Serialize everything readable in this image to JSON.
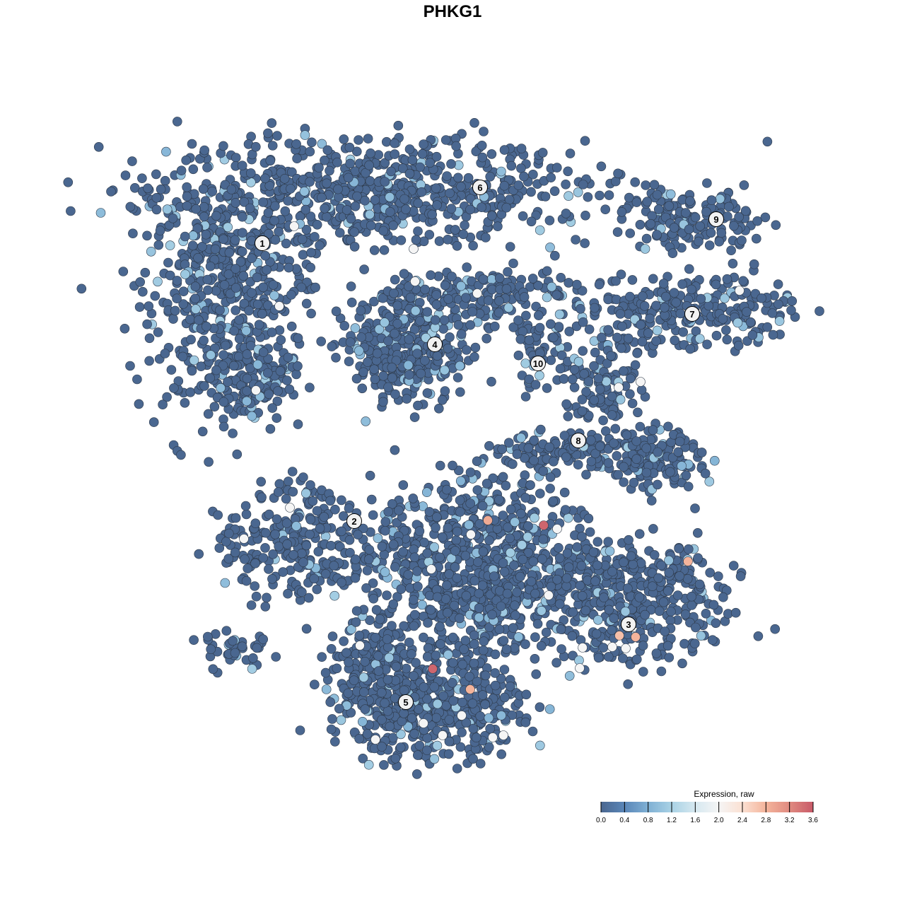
{
  "chart_data": {
    "type": "scatter",
    "title": "PHKG1",
    "xlabel": "",
    "ylabel": "",
    "axes_visible": false,
    "grid": false,
    "xlim": [
      0,
      93
    ],
    "ylim": [
      0,
      90
    ],
    "legend": {
      "title": "Expression, raw",
      "placement": "bottom-right",
      "range": [
        0.0,
        3.6
      ],
      "ticks": [
        "0.0",
        "0.4",
        "0.8",
        "1.2",
        "1.6",
        "2.0",
        "2.4",
        "2.8",
        "3.2",
        "3.6"
      ],
      "colors": [
        "#4a6790",
        "#5a86b8",
        "#7fb0d4",
        "#a9d2e5",
        "#d6e8f0",
        "#f5f5f5",
        "#fbe0d2",
        "#f4b49b",
        "#e08a80",
        "#c85a68"
      ]
    },
    "point_style": {
      "background_value": 0.0,
      "highlight_fraction": 0.08,
      "highlight_value": 1.0
    },
    "cell_groups": [
      {
        "cx": 32,
        "cy": 82,
        "rx": 30,
        "ry": 7,
        "n": 700
      },
      {
        "cx": 12,
        "cy": 67,
        "rx": 11,
        "ry": 15,
        "n": 500
      },
      {
        "cx": 16,
        "cy": 55,
        "rx": 6,
        "ry": 4,
        "n": 120
      },
      {
        "cx": 38,
        "cy": 60,
        "rx": 8,
        "ry": 8,
        "n": 350
      },
      {
        "cx": 50,
        "cy": 67,
        "rx": 12,
        "ry": 4,
        "n": 150
      },
      {
        "cx": 56.5,
        "cy": 59,
        "rx": 3.5,
        "ry": 5,
        "n": 60
      },
      {
        "cx": 78,
        "cy": 78,
        "rx": 10,
        "ry": 4,
        "n": 150
      },
      {
        "cx": 78,
        "cy": 65,
        "rx": 14,
        "ry": 5,
        "n": 250
      },
      {
        "cx": 66,
        "cy": 55,
        "rx": 5,
        "ry": 7,
        "n": 120
      },
      {
        "cx": 72,
        "cy": 44,
        "rx": 6.5,
        "ry": 4,
        "n": 150
      },
      {
        "cx": 59,
        "cy": 45,
        "rx": 8,
        "ry": 2.5,
        "n": 100
      },
      {
        "cx": 22,
        "cy": 32,
        "rx": 10,
        "ry": 7,
        "n": 250
      },
      {
        "cx": 48,
        "cy": 29,
        "rx": 15,
        "ry": 12,
        "n": 800
      },
      {
        "cx": 70,
        "cy": 24,
        "rx": 12,
        "ry": 8,
        "n": 400
      },
      {
        "cx": 41,
        "cy": 9,
        "rx": 12,
        "ry": 7,
        "n": 500
      },
      {
        "cx": 33,
        "cy": 15,
        "rx": 5,
        "ry": 6,
        "n": 150
      },
      {
        "cx": 13,
        "cy": 17,
        "rx": 5,
        "ry": 2.5,
        "n": 40
      }
    ],
    "expressing_cells": [
      {
        "x": 49.0,
        "y": 35.4,
        "value": 2.9
      },
      {
        "x": 56.9,
        "y": 34.7,
        "value": 3.5
      },
      {
        "x": 41.2,
        "y": 14.4,
        "value": 3.5
      },
      {
        "x": 46.5,
        "y": 11.5,
        "value": 2.8
      },
      {
        "x": 77.3,
        "y": 29.6,
        "value": 2.8
      },
      {
        "x": 67.6,
        "y": 19.1,
        "value": 2.7
      },
      {
        "x": 69.9,
        "y": 18.9,
        "value": 2.8
      },
      {
        "x": 38.5,
        "y": 73.8,
        "value": 2.0
      },
      {
        "x": 38.7,
        "y": 69.2,
        "value": 2.0
      },
      {
        "x": 47.5,
        "y": 67.5,
        "value": 2.0
      },
      {
        "x": 21.0,
        "y": 37.2,
        "value": 2.0
      },
      {
        "x": 14.5,
        "y": 32.8,
        "value": 2.0
      },
      {
        "x": 46.6,
        "y": 33.4,
        "value": 2.0
      },
      {
        "x": 58.8,
        "y": 34.2,
        "value": 2.0
      },
      {
        "x": 57.6,
        "y": 24.8,
        "value": 2.0
      },
      {
        "x": 68.5,
        "y": 17.3,
        "value": 2.0
      },
      {
        "x": 66.6,
        "y": 17.5,
        "value": 2.0
      },
      {
        "x": 62.4,
        "y": 17.4,
        "value": 2.0
      },
      {
        "x": 62.0,
        "y": 14.5,
        "value": 2.0
      },
      {
        "x": 70.6,
        "y": 55.0,
        "value": 2.0
      },
      {
        "x": 67.5,
        "y": 54.2,
        "value": 2.0
      },
      {
        "x": 84.6,
        "y": 67.9,
        "value": 2.0
      },
      {
        "x": 30.9,
        "y": 17.7,
        "value": 2.0
      },
      {
        "x": 39.9,
        "y": 6.7,
        "value": 2.0
      },
      {
        "x": 42.6,
        "y": 5.0,
        "value": 2.0
      },
      {
        "x": 51.2,
        "y": 5.0,
        "value": 2.0
      },
      {
        "x": 49.7,
        "y": 4.7,
        "value": 2.0
      },
      {
        "x": 45.3,
        "y": 7.8,
        "value": 2.0
      },
      {
        "x": 41.0,
        "y": 28.5,
        "value": 2.0
      },
      {
        "x": 33.1,
        "y": 4.4,
        "value": 2.0
      },
      {
        "x": 16.2,
        "y": 53.8,
        "value": 2.0
      },
      {
        "x": 19.5,
        "y": 65.7,
        "value": 2.0
      },
      {
        "x": 21.6,
        "y": 77.0,
        "value": 2.0
      }
    ],
    "cluster_labels": [
      {
        "label": "1",
        "x": 17.1,
        "y": 74.6
      },
      {
        "label": "2",
        "x": 30.1,
        "y": 35.3
      },
      {
        "label": "3",
        "x": 68.9,
        "y": 20.7
      },
      {
        "label": "4",
        "x": 41.5,
        "y": 60.3
      },
      {
        "label": "5",
        "x": 37.4,
        "y": 9.7
      },
      {
        "label": "6",
        "x": 47.9,
        "y": 82.5
      },
      {
        "label": "7",
        "x": 77.9,
        "y": 64.6
      },
      {
        "label": "8",
        "x": 61.8,
        "y": 46.7
      },
      {
        "label": "9",
        "x": 81.3,
        "y": 78.0
      },
      {
        "label": "10",
        "x": 56.1,
        "y": 57.6
      }
    ]
  }
}
